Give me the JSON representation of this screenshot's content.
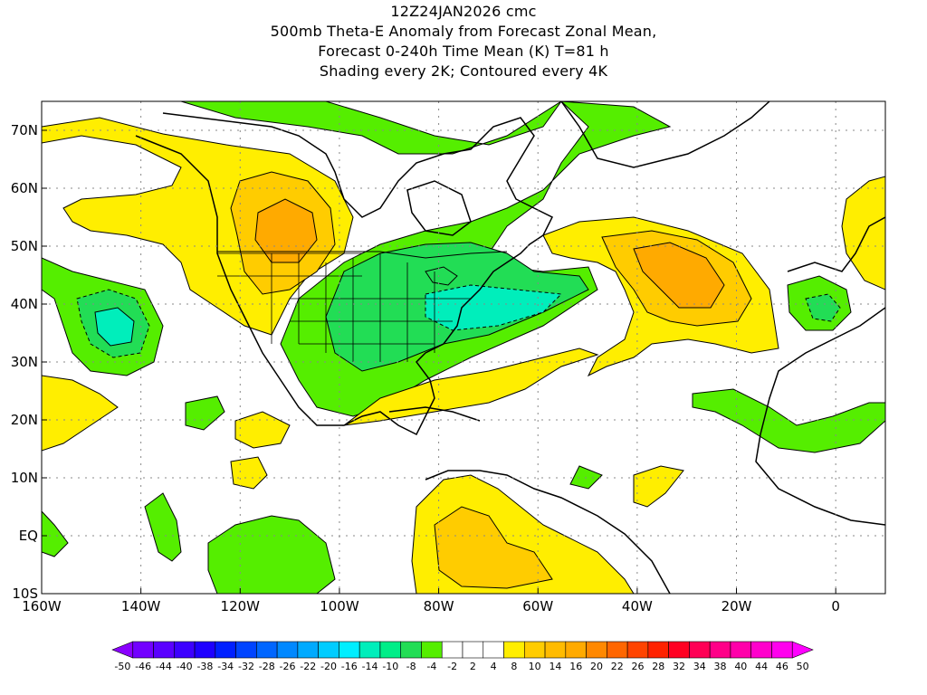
{
  "title": {
    "line1": "12Z24JAN2026 cmc",
    "line2": "500mb Theta-E Anomaly from Forecast Zonal Mean,",
    "line3": "Forecast 0-240h Time Mean (K) T=81 h",
    "line4": "Shading every 2K; Contoured every 4K"
  },
  "axes": {
    "lon_labels": [
      "160W",
      "140W",
      "120W",
      "100W",
      "80W",
      "60W",
      "40W",
      "20W",
      "0"
    ],
    "lat_labels": [
      "70N",
      "60N",
      "50N",
      "40N",
      "30N",
      "20N",
      "10N",
      "EQ",
      "10S"
    ],
    "lon_range": [
      -160,
      10
    ],
    "lat_range": [
      -10,
      75
    ],
    "grid": "dotted"
  },
  "colors": {
    "ocean": "#ffffff",
    "coast": "#000000",
    "green_light": "#55ee00",
    "green_mid": "#22dd55",
    "green_dark": "#00dd88",
    "cyan": "#00eebb",
    "yellow": "#ffee00",
    "gold": "#ffcc00",
    "orange": "#ffaa00"
  },
  "colorbar": {
    "labels": [
      "-50",
      "-46",
      "-44",
      "-40",
      "-38",
      "-34",
      "-32",
      "-28",
      "-26",
      "-22",
      "-20",
      "-16",
      "-14",
      "-10",
      "-8",
      "-4",
      "-2",
      "2",
      "4",
      "8",
      "10",
      "14",
      "16",
      "20",
      "22",
      "26",
      "28",
      "32",
      "34",
      "38",
      "40",
      "44",
      "46",
      "50"
    ],
    "colors": [
      "#8a00ff",
      "#7200ff",
      "#5a00ff",
      "#3c00ff",
      "#1e00ff",
      "#0020ff",
      "#0044ff",
      "#0066ff",
      "#0088ff",
      "#00aaff",
      "#00ccff",
      "#00eeff",
      "#00eebb",
      "#00ee88",
      "#22dd55",
      "#55ee00",
      "#ffffff",
      "#ffffff",
      "#ffffff",
      "#ffee00",
      "#ffcc00",
      "#ffbb00",
      "#ffaa00",
      "#ff8800",
      "#ff6600",
      "#ff4400",
      "#ff2200",
      "#ff0022",
      "#ff0055",
      "#ff0088",
      "#ff00aa",
      "#ff00cc",
      "#ff00ee",
      "#ff00ff"
    ]
  }
}
